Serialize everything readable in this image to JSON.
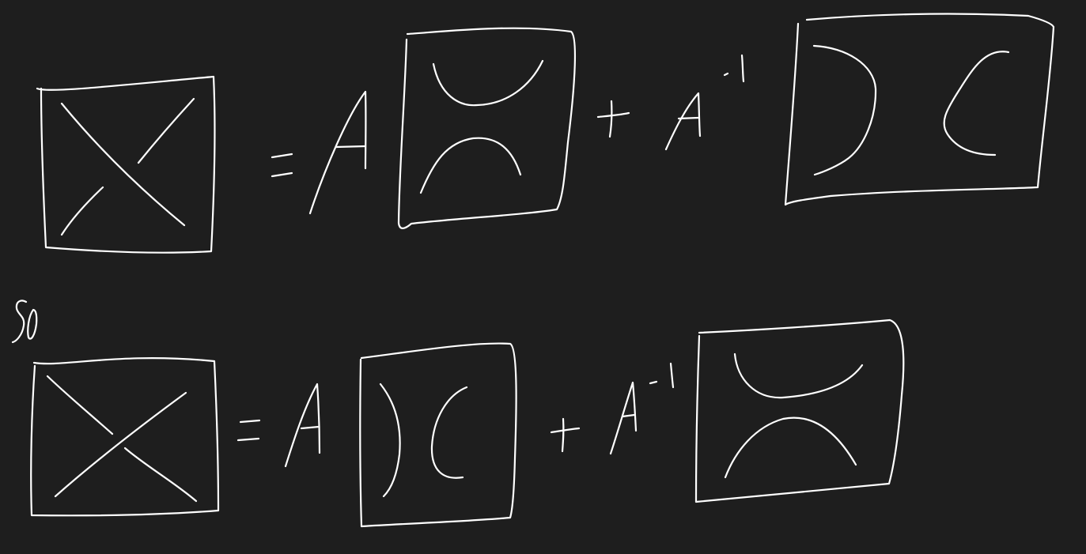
{
  "ink_color": "#ffffff",
  "background_color": "#1e1e1e",
  "handwriting": {
    "row1": {
      "equals": "=",
      "coeff1": "A",
      "plus": "+",
      "coeff2": "A",
      "exponent": "-1"
    },
    "connector": "So",
    "row2": {
      "equals": "=",
      "coeff1": "A",
      "plus": "+",
      "coeff2": "A",
      "exponent": "-1"
    }
  }
}
